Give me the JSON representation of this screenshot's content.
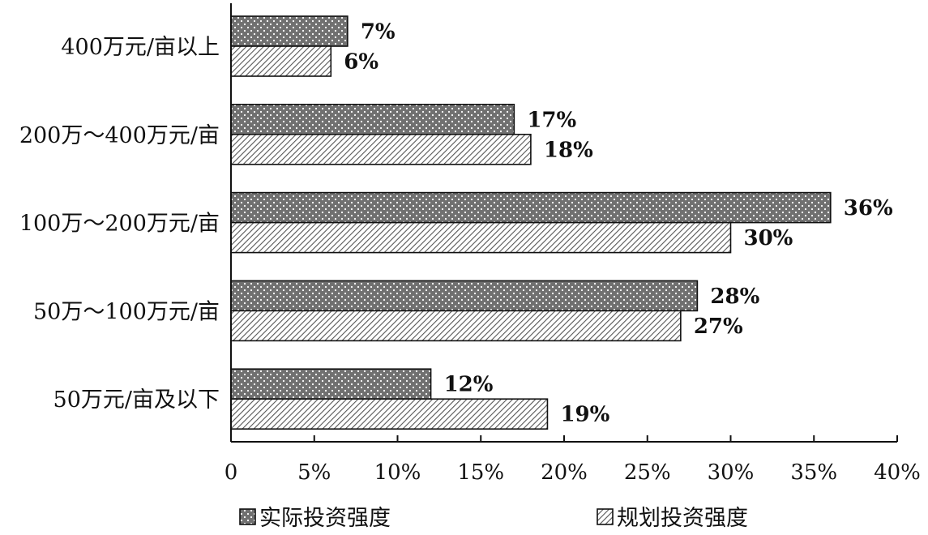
{
  "chart_data": {
    "type": "bar",
    "orientation": "horizontal",
    "categories": [
      "400万元/亩以上",
      "200万～400万元/亩",
      "100万～200万元/亩",
      "50万～100万元/亩",
      "50万元/亩及以下"
    ],
    "series": [
      {
        "name": "实际投资强度",
        "values": [
          7,
          17,
          36,
          28,
          12
        ],
        "labels": [
          "7%",
          "17%",
          "36%",
          "28%",
          "12%"
        ],
        "pattern": "dots",
        "color": "#707070"
      },
      {
        "name": "规划投资强度",
        "values": [
          6,
          18,
          30,
          27,
          19
        ],
        "labels": [
          "6%",
          "18%",
          "30%",
          "27%",
          "19%"
        ],
        "pattern": "hatch",
        "color": "#d6d6d6"
      }
    ],
    "xlim": [
      0,
      40
    ],
    "xticks": [
      0,
      5,
      10,
      15,
      20,
      25,
      30,
      35,
      40
    ],
    "xtick_labels": [
      "0",
      "5%",
      "10%",
      "15%",
      "20%",
      "25%",
      "30%",
      "35%",
      "40%"
    ],
    "title": "",
    "xlabel": "",
    "ylabel": "",
    "grid": false,
    "legend_position": "bottom"
  }
}
